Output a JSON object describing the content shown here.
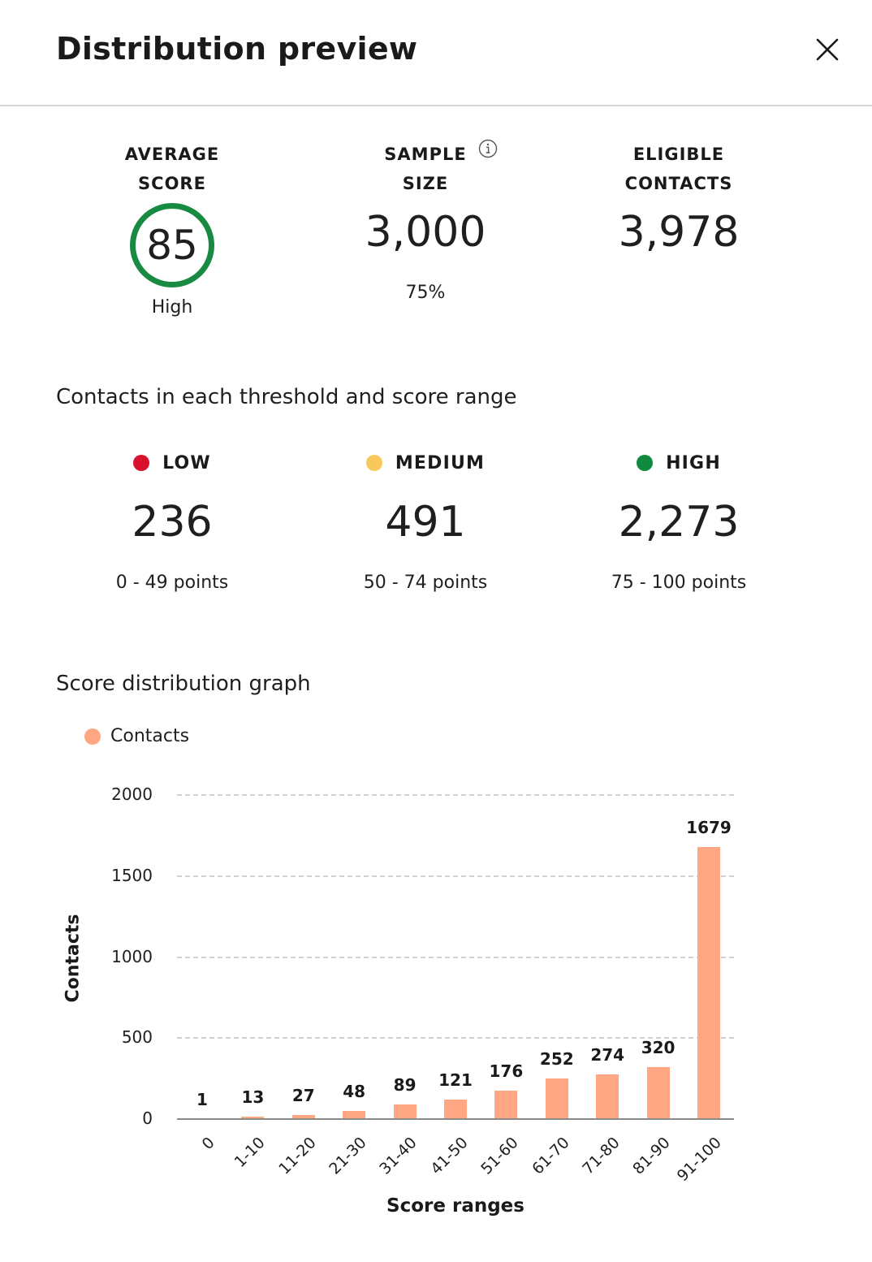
{
  "header": {
    "title": "Distribution preview",
    "close_icon": "close-icon"
  },
  "stats": {
    "average_score": {
      "label_line1": "AVERAGE",
      "label_line2": "SCORE",
      "value": "85",
      "sub": "High",
      "ring_color": "#188a41"
    },
    "sample_size": {
      "label_line1": "SAMPLE",
      "label_line2": "SIZE",
      "value": "3,000",
      "sub": "75%",
      "info_icon": "info-icon"
    },
    "eligible_contacts": {
      "label_line1": "ELIGIBLE",
      "label_line2": "CONTACTS",
      "value": "3,978"
    }
  },
  "thresholds": {
    "title": "Contacts in each threshold and score range",
    "tiers": [
      {
        "label": "LOW",
        "value": "236",
        "range": "0 - 49 points",
        "color": "#d8112c"
      },
      {
        "label": "MEDIUM",
        "value": "491",
        "range": "50 - 74 points",
        "color": "#f7c95c"
      },
      {
        "label": "HIGH",
        "value": "2,273",
        "range": "75 - 100 points",
        "color": "#0f8a3e"
      }
    ]
  },
  "graph": {
    "title": "Score distribution graph",
    "legend_label": "Contacts",
    "bar_color": "#ffa682"
  },
  "chart_data": {
    "type": "bar",
    "title": "Score distribution graph",
    "xlabel": "Score ranges",
    "ylabel": "Contacts",
    "categories": [
      "0",
      "1-10",
      "11-20",
      "21-30",
      "31-40",
      "41-50",
      "51-60",
      "61-70",
      "71-80",
      "81-90",
      "91-100"
    ],
    "series": [
      {
        "name": "Contacts",
        "values": [
          1,
          13,
          27,
          48,
          89,
          121,
          176,
          252,
          274,
          320,
          1679
        ],
        "color": "#ffa682"
      }
    ],
    "yticks": [
      "0",
      "500",
      "1000",
      "1500",
      "2000"
    ],
    "ylim": [
      0,
      2000
    ],
    "grid": true,
    "legend_position": "top-left",
    "data_labels": true
  }
}
